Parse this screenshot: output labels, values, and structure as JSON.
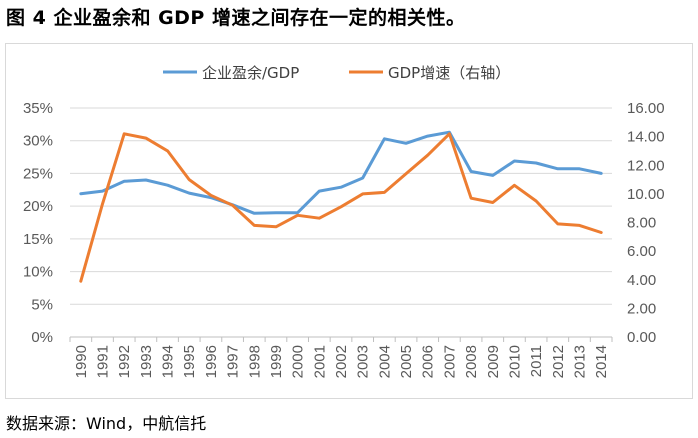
{
  "title": "图 4 企业盈余和 GDP 增速之间存在一定的相关性。",
  "source": "数据来源：Wind，中航信托",
  "chart_data": {
    "type": "line",
    "categories": [
      "1990",
      "1991",
      "1992",
      "1993",
      "1994",
      "1995",
      "1996",
      "1997",
      "1998",
      "1999",
      "2000",
      "2001",
      "2002",
      "2003",
      "2004",
      "2005",
      "2006",
      "2007",
      "2008",
      "2009",
      "2010",
      "2011",
      "2012",
      "2013",
      "2014"
    ],
    "series": [
      {
        "name": "企业盈余/GDP",
        "axis": "left",
        "color": "#5b9bd5",
        "values": [
          21.9,
          22.3,
          23.8,
          24.0,
          23.2,
          22.0,
          21.3,
          20.2,
          18.9,
          19.0,
          19.0,
          22.3,
          22.9,
          24.3,
          30.3,
          29.6,
          30.7,
          31.3,
          25.3,
          24.7,
          26.9,
          26.6,
          25.7,
          25.7,
          25.0
        ]
      },
      {
        "name": "GDP增速（右轴）",
        "axis": "right",
        "color": "#ed7d31",
        "values": [
          3.9,
          9.3,
          14.2,
          13.9,
          13.0,
          11.0,
          9.9,
          9.2,
          7.8,
          7.7,
          8.5,
          8.3,
          9.1,
          10.0,
          10.1,
          11.4,
          12.7,
          14.2,
          9.7,
          9.4,
          10.6,
          9.5,
          7.9,
          7.8,
          7.3
        ]
      }
    ],
    "y_left": {
      "min": 0,
      "max": 35,
      "step": 5,
      "tick_labels": [
        "0%",
        "5%",
        "10%",
        "15%",
        "20%",
        "25%",
        "30%",
        "35%"
      ]
    },
    "y_right": {
      "min": 0,
      "max": 16,
      "step": 2,
      "tick_labels": [
        "0.00",
        "2.00",
        "4.00",
        "6.00",
        "8.00",
        "10.00",
        "12.00",
        "14.00",
        "16.00"
      ]
    },
    "legend_position": "top-center",
    "grid": true
  }
}
